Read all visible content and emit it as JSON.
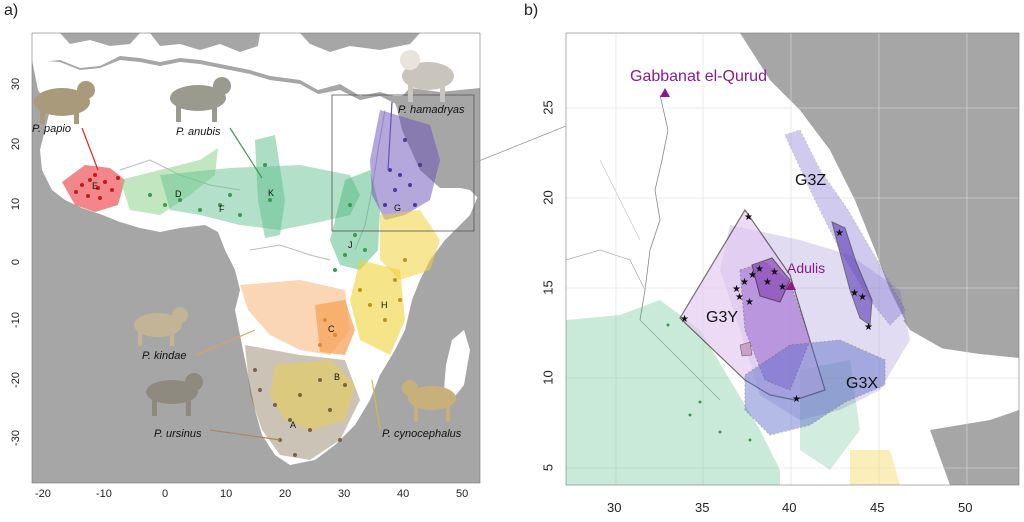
{
  "panels": {
    "a": "a)",
    "b": "b)"
  },
  "panel_a": {
    "x_ticks": [
      "-20",
      "-10",
      "0",
      "10",
      "20",
      "30",
      "40",
      "50"
    ],
    "y_ticks": [
      "30",
      "20",
      "10",
      "0",
      "-10",
      "-20",
      "-30"
    ],
    "species": {
      "papio": "P. papio",
      "anubis": "P. anubis",
      "hamadryas": "P. hamadryas",
      "kindae": "P. kindae",
      "ursinus": "P. ursinus",
      "cynocephalus": "P. cynocephalus"
    },
    "zones": {
      "E": "E",
      "D": "D",
      "F": "F",
      "K": "K",
      "G": "G",
      "J": "J",
      "C": "C",
      "H": "H",
      "B": "B",
      "A": "A"
    },
    "species_colors": {
      "papio": "#e8222a",
      "anubis": "#4cb87e",
      "hamadryas": "#6a4fb8",
      "kindae": "#f5a35a",
      "ursinus": "#8b7a5a",
      "cynocephalus": "#f0d23a"
    }
  },
  "panel_b": {
    "x_ticks": [
      "30",
      "35",
      "40",
      "45",
      "50"
    ],
    "y_ticks": [
      "25",
      "20",
      "15",
      "10",
      "5"
    ],
    "sites": {
      "gabbanat": "Gabbanat el-Qurud",
      "adulis": "Adulis"
    },
    "groups": {
      "G3Z": "G3Z",
      "G3Y": "G3Y",
      "G3X": "G3X"
    }
  }
}
